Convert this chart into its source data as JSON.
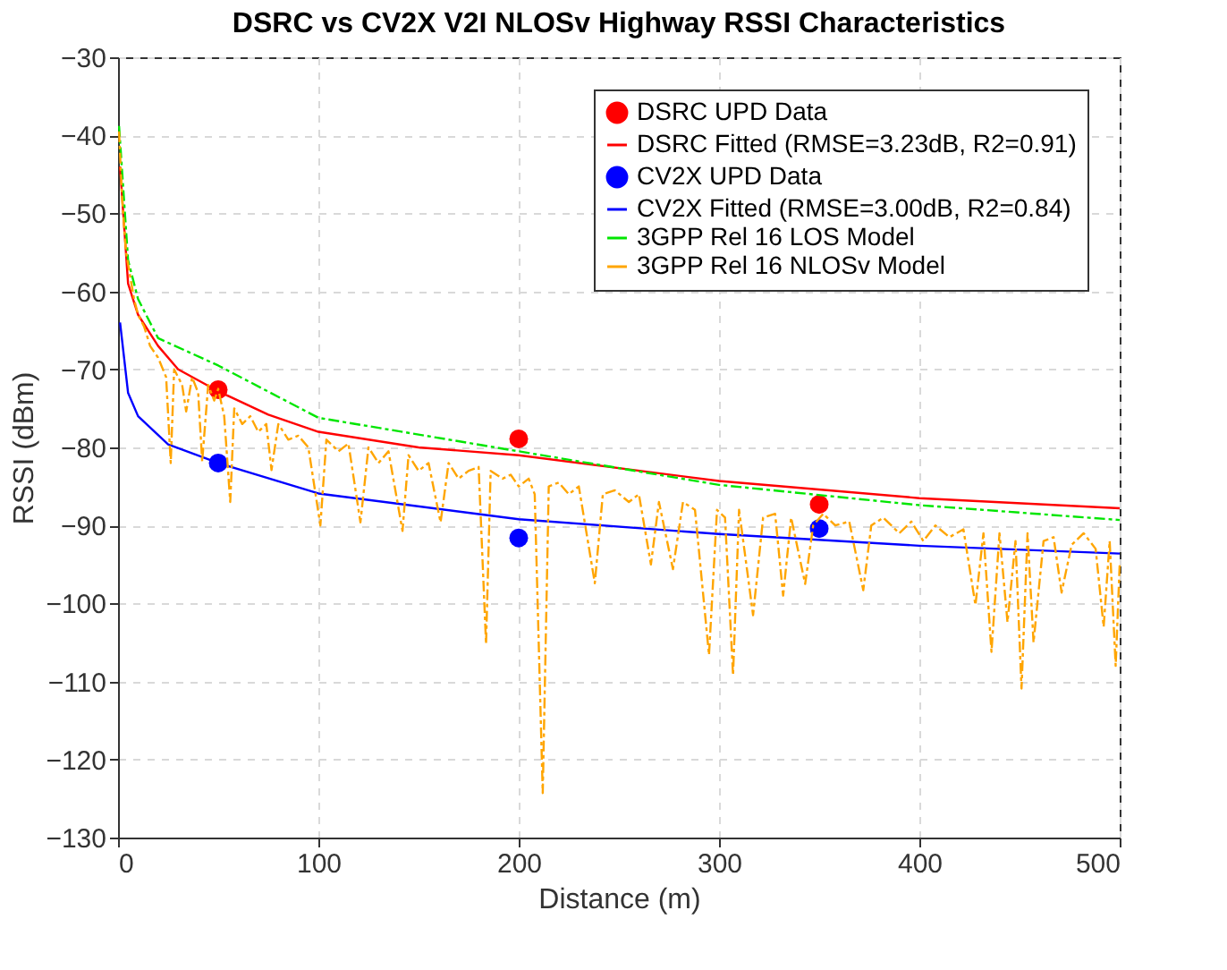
{
  "chart_data": {
    "type": "line",
    "title": "DSRC vs CV2X V2I NLOSv Highway RSSI Characteristics",
    "xlabel": "Distance (m)",
    "ylabel": "RSSI (dBm)",
    "xlim": [
      0,
      500
    ],
    "xticks": [
      0,
      100,
      200,
      300,
      400,
      500
    ],
    "ylim": [
      -130,
      -30
    ],
    "yticks": [
      -130,
      -120,
      -110,
      -100,
      -90,
      -80,
      -70,
      -60,
      -50,
      -40,
      -30
    ],
    "grid": true,
    "legend": "top right",
    "series": [
      {
        "name": "DSRC UPD Data",
        "type": "scatter",
        "marker": "circle",
        "color": "#ff0000",
        "x": [
          50,
          200,
          350
        ],
        "values": [
          -72.6,
          -78.9,
          -87.3
        ]
      },
      {
        "name": "DSRC Fitted (RMSE=3.23dB, R2=0.91)",
        "line_style": "solid",
        "color": "#ff0000",
        "x": [
          1,
          5,
          10,
          20,
          30,
          50,
          75,
          100,
          150,
          200,
          300,
          400,
          500
        ],
        "values": [
          -44,
          -59,
          -63,
          -67,
          -70,
          -72.8,
          -75.8,
          -78,
          -80,
          -81,
          -84.3,
          -86.5,
          -87.8
        ]
      },
      {
        "name": "CV2X UPD Data",
        "type": "scatter",
        "marker": "circle",
        "color": "#0000ff",
        "x": [
          50,
          200,
          350
        ],
        "values": [
          -82.0,
          -91.6,
          -90.4
        ]
      },
      {
        "name": "CV2X Fitted (RMSE=3.00dB, R2=0.84)",
        "line_style": "solid",
        "color": "#0000ff",
        "x": [
          1,
          5,
          10,
          25,
          50,
          100,
          200,
          300,
          400,
          500
        ],
        "values": [
          -64,
          -73,
          -76,
          -79.6,
          -82,
          -85.9,
          -89.2,
          -91.1,
          -92.6,
          -93.6
        ]
      },
      {
        "name": "3GPP Rel 16 LOS Model",
        "line_style": "dashed",
        "color": "#00e600",
        "x": [
          0.5,
          5,
          10,
          20,
          50,
          100,
          200,
          300,
          400,
          500
        ],
        "values": [
          -38.8,
          -56,
          -61,
          -66,
          -69.5,
          -76.2,
          -80.5,
          -84.8,
          -87.4,
          -89.3
        ]
      },
      {
        "name": "3GPP Rel 16 NLOSv Model",
        "line_style": "dashed",
        "color": "#ffa500",
        "x": [
          0.5,
          2,
          4,
          6,
          8,
          10,
          13,
          16,
          20,
          24,
          26.3,
          28,
          32,
          34,
          37,
          40,
          42,
          45,
          48,
          50,
          53,
          56,
          58,
          62,
          66,
          70,
          74,
          76.6,
          80,
          85,
          90,
          95,
          101,
          104,
          110,
          115,
          121,
          125,
          130,
          135,
          142,
          145,
          150,
          155,
          161,
          165,
          170,
          175,
          180,
          183.7,
          186,
          192,
          196,
          200,
          205,
          208,
          212,
          215,
          220,
          225,
          230,
          238,
          242,
          248,
          255,
          260,
          266,
          270,
          277,
          282,
          288,
          295,
          299,
          303,
          307,
          310,
          317,
          322,
          328,
          332,
          336,
          343,
          347,
          352,
          358,
          365,
          372,
          376,
          382,
          390,
          396,
          402,
          408,
          415,
          422,
          428,
          432,
          436,
          440,
          444,
          448,
          451,
          454,
          457,
          462,
          467,
          471,
          476,
          482,
          488,
          492,
          495,
          498,
          500
        ],
        "values": [
          -39.5,
          -48,
          -55,
          -58,
          -61,
          -63,
          -64.5,
          -67,
          -68.5,
          -71,
          -82,
          -70,
          -72,
          -75.4,
          -71,
          -73,
          -81.8,
          -72,
          -74,
          -72.5,
          -76,
          -87,
          -75,
          -77,
          -76,
          -78,
          -77,
          -82.9,
          -77,
          -79,
          -78.5,
          -80,
          -90,
          -79,
          -80.5,
          -79.5,
          -89.6,
          -80,
          -82,
          -80.5,
          -90.7,
          -81,
          -83,
          -82,
          -89.6,
          -82,
          -84,
          -83,
          -82.5,
          -105.2,
          -83,
          -84,
          -83.5,
          -85,
          -84,
          -86,
          -124.3,
          -85,
          -84.5,
          -86,
          -85,
          -97.4,
          -86,
          -85.5,
          -87,
          -86,
          -95,
          -87,
          -95.6,
          -87,
          -88,
          -106.6,
          -88,
          -89,
          -109.2,
          -88,
          -101.5,
          -89,
          -88.5,
          -99,
          -89,
          -97.5,
          -90,
          -88.5,
          -90,
          -89.5,
          -98.3,
          -90,
          -89,
          -91,
          -89.5,
          -92,
          -90,
          -91.5,
          -90.5,
          -100.2,
          -91,
          -106.2,
          -91,
          -102.4,
          -92,
          -110.9,
          -91,
          -105,
          -92,
          -91.5,
          -98.6,
          -92.5,
          -91,
          -93,
          -103,
          -92,
          -108,
          -95
        ]
      }
    ]
  }
}
